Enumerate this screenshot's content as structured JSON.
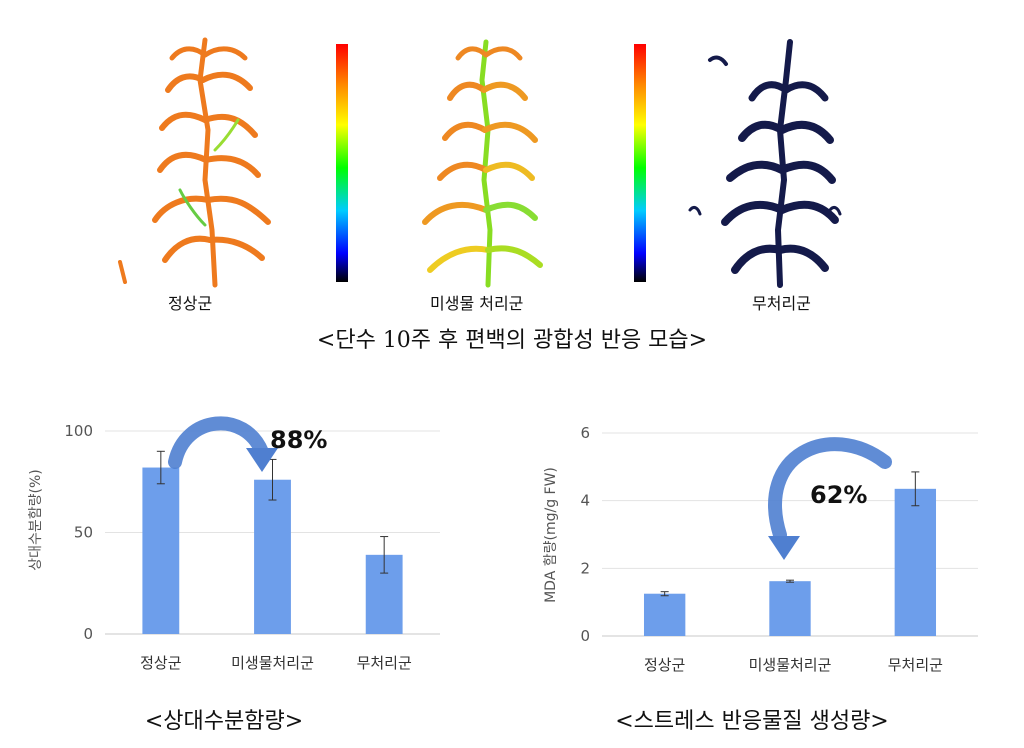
{
  "top_panel": {
    "labels": [
      "정상군",
      "미생물 처리군",
      "무처리군"
    ],
    "caption": "<단수 10주 후 편백의 광합성 반응 모습>"
  },
  "chart_data": [
    {
      "type": "bar",
      "categories": [
        "정상군",
        "미생물처리군",
        "무처리군"
      ],
      "values": [
        82,
        76,
        39
      ],
      "errors": [
        8,
        10,
        9
      ],
      "ylabel": "상대수분함량(%)",
      "ylim": [
        0,
        100
      ],
      "yticks": [
        0,
        50,
        100
      ],
      "grid": true,
      "bar_color": "#6d9eeb",
      "annotation": "88%",
      "caption": "<상대수분함량>"
    },
    {
      "type": "bar",
      "categories": [
        "정상군",
        "미생물처리군",
        "무처리군"
      ],
      "values": [
        1.25,
        1.62,
        4.35
      ],
      "errors": [
        0.06,
        0.03,
        0.5
      ],
      "ylabel": "MDA 함량(mg/g FW)",
      "ylim": [
        0,
        6
      ],
      "yticks": [
        0,
        2,
        4,
        6
      ],
      "grid": true,
      "bar_color": "#6d9eeb",
      "annotation": "62%",
      "caption": "<스트레스 반응물질 생성량>"
    }
  ]
}
